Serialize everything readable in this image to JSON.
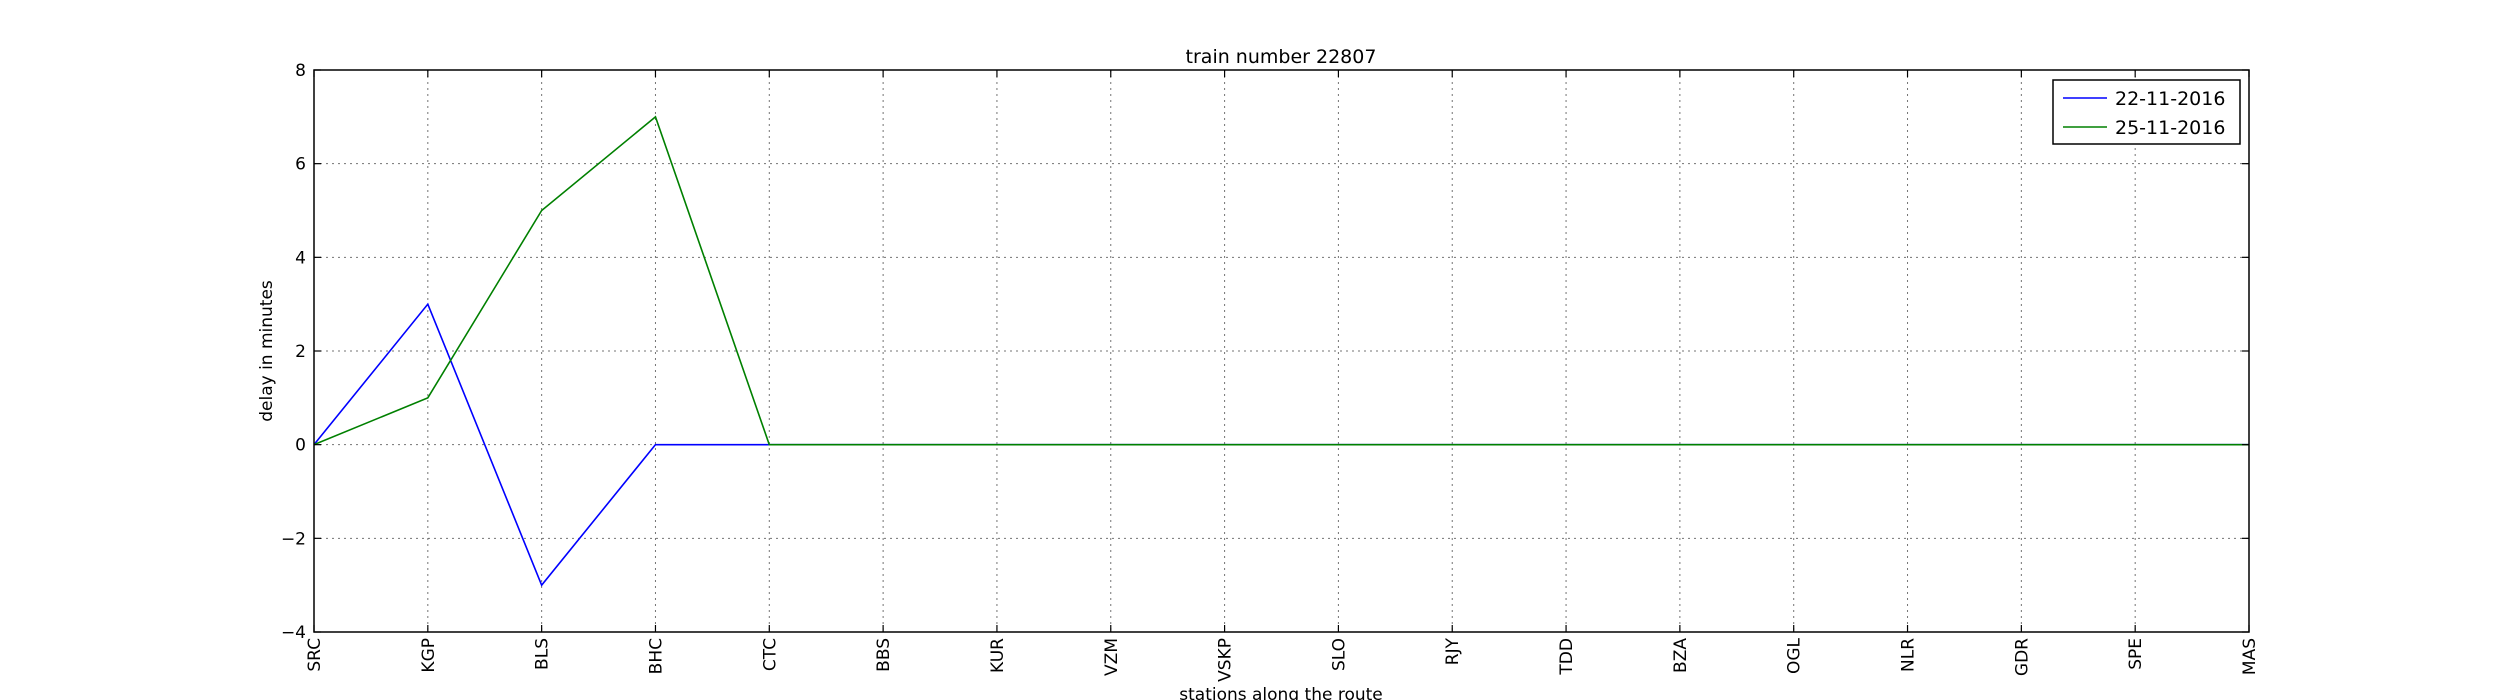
{
  "chart_data": {
    "type": "line",
    "title": "train number 22807",
    "xlabel": "stations along the route",
    "ylabel": "delay in minutes",
    "categories": [
      "SRC",
      "KGP",
      "BLS",
      "BHC",
      "CTC",
      "BBS",
      "KUR",
      "VZM",
      "VSKP",
      "SLO",
      "RJY",
      "TDD",
      "BZA",
      "OGL",
      "NLR",
      "GDR",
      "SPE",
      "MAS"
    ],
    "yticks": [
      -4,
      -2,
      0,
      2,
      4,
      6,
      8
    ],
    "ylim": [
      -4,
      8
    ],
    "grid": true,
    "legend_position": "top-right",
    "series": [
      {
        "name": "22-11-2016",
        "color": "#0000ff",
        "values": [
          0,
          3,
          -3,
          0,
          0,
          0,
          0,
          0,
          0,
          0,
          0,
          0,
          0,
          0,
          0,
          0,
          0,
          0
        ]
      },
      {
        "name": "25-11-2016",
        "color": "#008000",
        "values": [
          0,
          1,
          5,
          7,
          0,
          0,
          0,
          0,
          0,
          0,
          0,
          0,
          0,
          0,
          0,
          0,
          0,
          0
        ]
      }
    ]
  }
}
